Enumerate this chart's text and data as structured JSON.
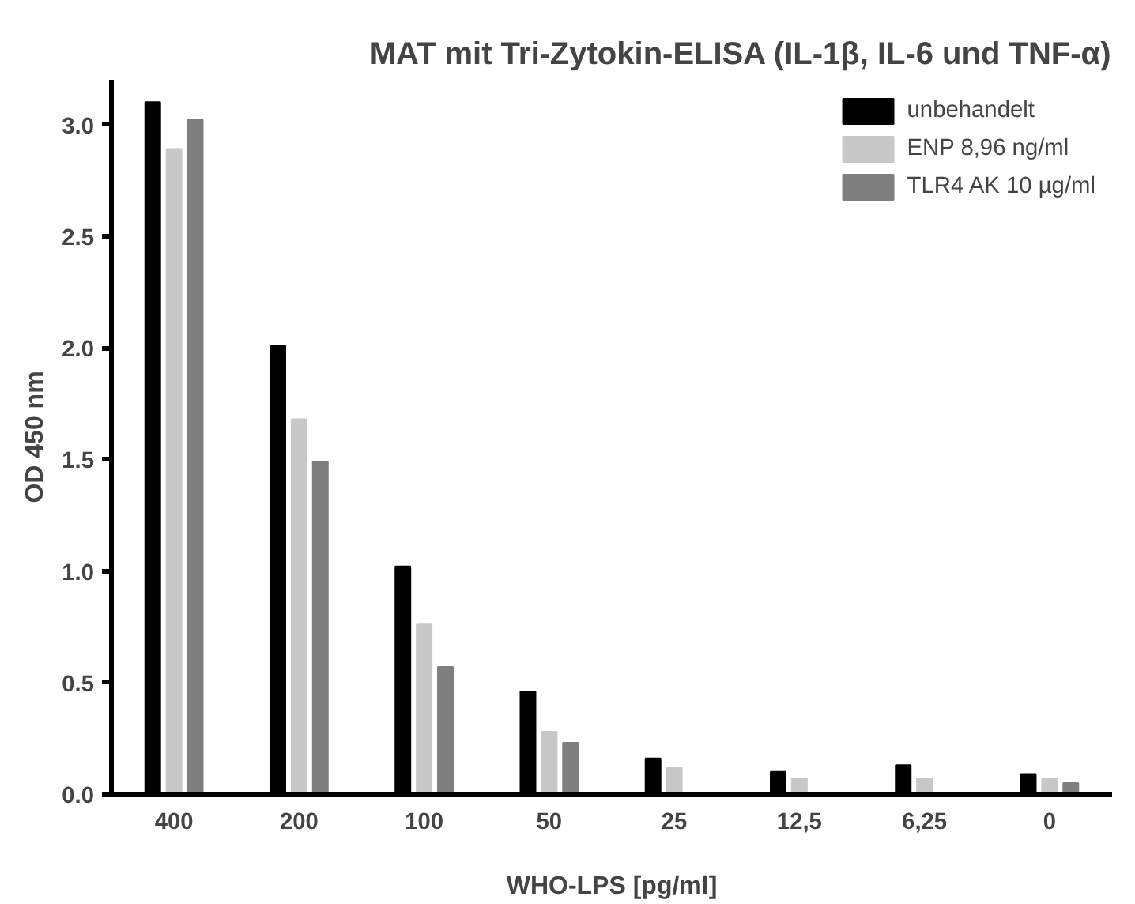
{
  "chart_data": {
    "type": "bar",
    "title": "MAT mit Tri-Zytokin-ELISA (IL-1β, IL-6 und TNF-α)",
    "xlabel": "WHO-LPS [pg/ml]",
    "ylabel": "OD 450 nm",
    "categories": [
      "400",
      "200",
      "100",
      "50",
      "25",
      "12,5",
      "6,25",
      "0"
    ],
    "series": [
      {
        "name": "unbehandelt",
        "color": "#000000",
        "values": [
          3.1,
          2.01,
          1.02,
          0.46,
          0.16,
          0.1,
          0.13,
          0.09
        ]
      },
      {
        "name": "ENP 8,96 ng/ml",
        "color": "#c8c8c8",
        "values": [
          2.89,
          1.68,
          0.76,
          0.28,
          0.12,
          0.07,
          0.07,
          0.07
        ]
      },
      {
        "name": "TLR4 AK 10 µg/ml",
        "color": "#7f7f7f",
        "values": [
          3.02,
          1.49,
          0.57,
          0.23,
          null,
          null,
          null,
          0.05
        ]
      }
    ],
    "ylim": [
      0,
      3.2
    ],
    "yticks": [
      {
        "value": 0,
        "label": "0.0"
      },
      {
        "value": 0.5,
        "label": "0.5"
      },
      {
        "value": 1,
        "label": "1.0"
      },
      {
        "value": 1.5,
        "label": "1.5"
      },
      {
        "value": 2,
        "label": "2.0"
      },
      {
        "value": 2.5,
        "label": "2.5"
      },
      {
        "value": 3,
        "label": "3.0"
      }
    ],
    "grid": false,
    "legend": "top right"
  }
}
